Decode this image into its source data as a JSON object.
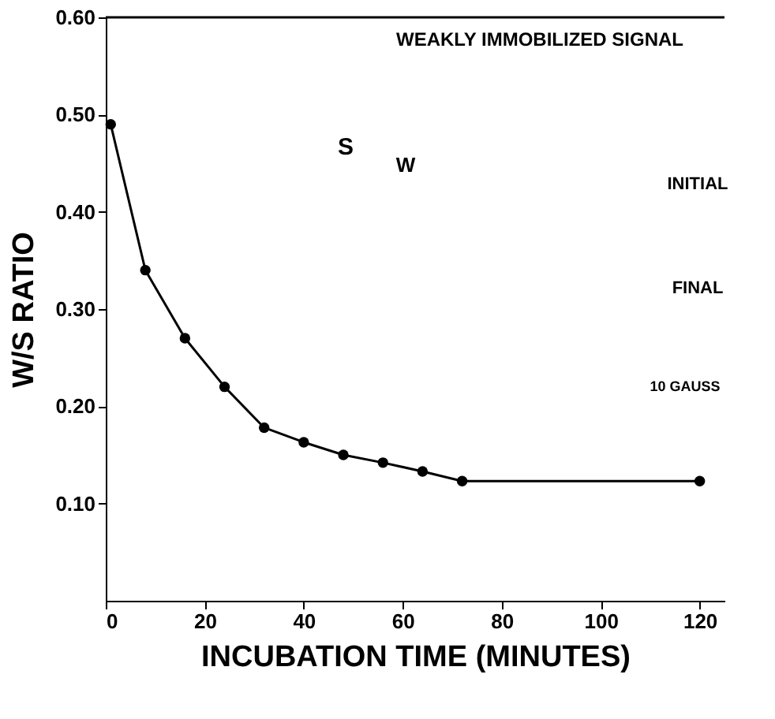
{
  "chart_data": {
    "type": "line",
    "xlabel": "INCUBATION TIME (MINUTES)",
    "ylabel": "W/S RATIO",
    "x": [
      1,
      8,
      16,
      24,
      32,
      40,
      48,
      56,
      64,
      72,
      120
    ],
    "values": [
      0.49,
      0.34,
      0.27,
      0.22,
      0.178,
      0.163,
      0.15,
      0.142,
      0.133,
      0.123,
      0.123
    ],
    "color": "#000000",
    "marker": "circle",
    "line_style": "solid",
    "xlim": [
      0,
      125
    ],
    "xticks": [
      0,
      20,
      40,
      60,
      80,
      100,
      120
    ],
    "ylim": [
      0,
      0.6
    ],
    "yticks": [
      {
        "value": 0.1,
        "label": "0.10"
      },
      {
        "value": 0.2,
        "label": "0.20"
      },
      {
        "value": 0.3,
        "label": "0.30"
      },
      {
        "value": 0.4,
        "label": "0.40"
      },
      {
        "value": 0.5,
        "label": "0.50"
      },
      {
        "value": 0.6,
        "label": "0.60"
      }
    ],
    "grid": false,
    "annotations": [
      "WEAKLY IMMOBILIZED SIGNAL",
      "S",
      "W",
      "INITIAL",
      "FINAL",
      "10 GAUSS"
    ]
  }
}
